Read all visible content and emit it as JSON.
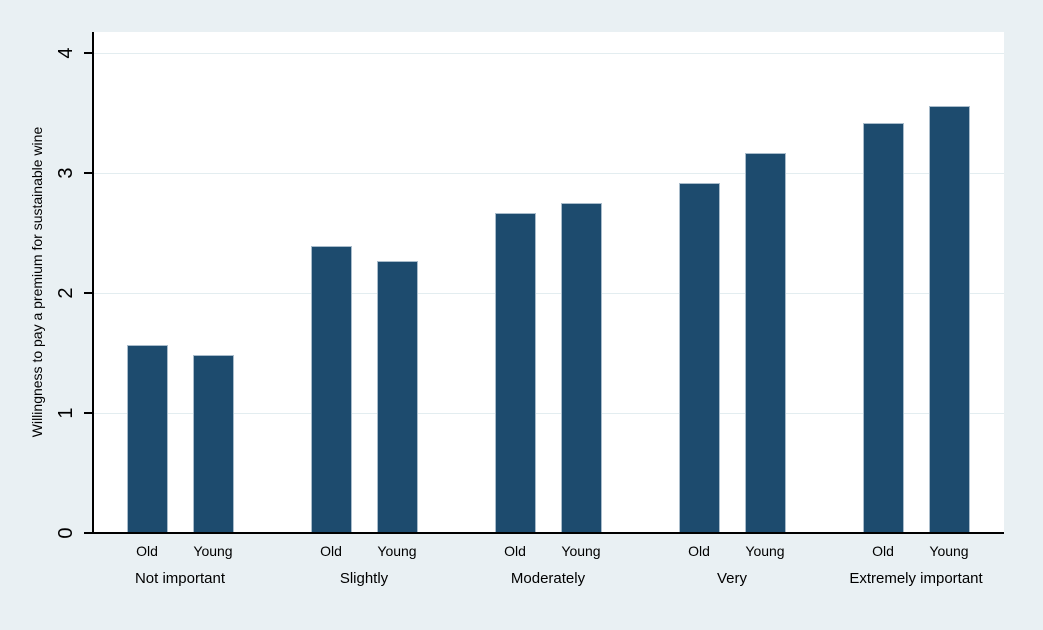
{
  "chart_data": {
    "type": "bar",
    "title": "",
    "xlabel": "",
    "ylabel": "Willingness to pay a premium for sustainable wine",
    "ylim": [
      0,
      4.18
    ],
    "yticks": [
      0,
      1,
      2,
      3,
      4
    ],
    "grid": true,
    "legend_position": "none",
    "categories": [
      "Not important",
      "Slightly",
      "Moderately",
      "Very",
      "Extremely important"
    ],
    "subcategories": [
      "Old",
      "Young"
    ],
    "series": [
      {
        "name": "Old",
        "values": [
          1.57,
          2.39,
          2.67,
          2.92,
          3.42
        ]
      },
      {
        "name": "Young",
        "values": [
          1.48,
          2.27,
          2.75,
          3.17,
          3.56
        ]
      }
    ],
    "colors": {
      "bar_fill": "#1d4b6e",
      "bar_outline": "#a9bccb",
      "figure_background": "#e9f0f3",
      "plot_background": "#ffffff",
      "gridline": "#e3edf0",
      "axis": "#000000",
      "text": "#000000"
    }
  }
}
